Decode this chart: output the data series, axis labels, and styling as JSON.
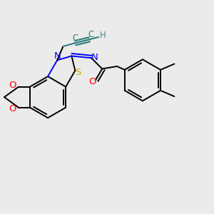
{
  "bg_color": "#ebebeb",
  "atom_colors": {
    "N": "#0000ff",
    "O": "#ff0000",
    "S": "#ccaa00",
    "C_triple": "#2a7a7a",
    "H": "#4a8a8a",
    "C": "#000000"
  }
}
